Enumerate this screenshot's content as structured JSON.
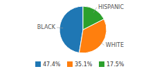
{
  "chart_data": {
    "type": "pie",
    "categories": [
      "BLACK",
      "WHITE",
      "HISPANIC"
    ],
    "values": [
      47.4,
      35.1,
      17.5
    ],
    "value_labels": [
      "47.4%",
      "35.1%",
      "17.5%"
    ],
    "legend": "bottom"
  }
}
